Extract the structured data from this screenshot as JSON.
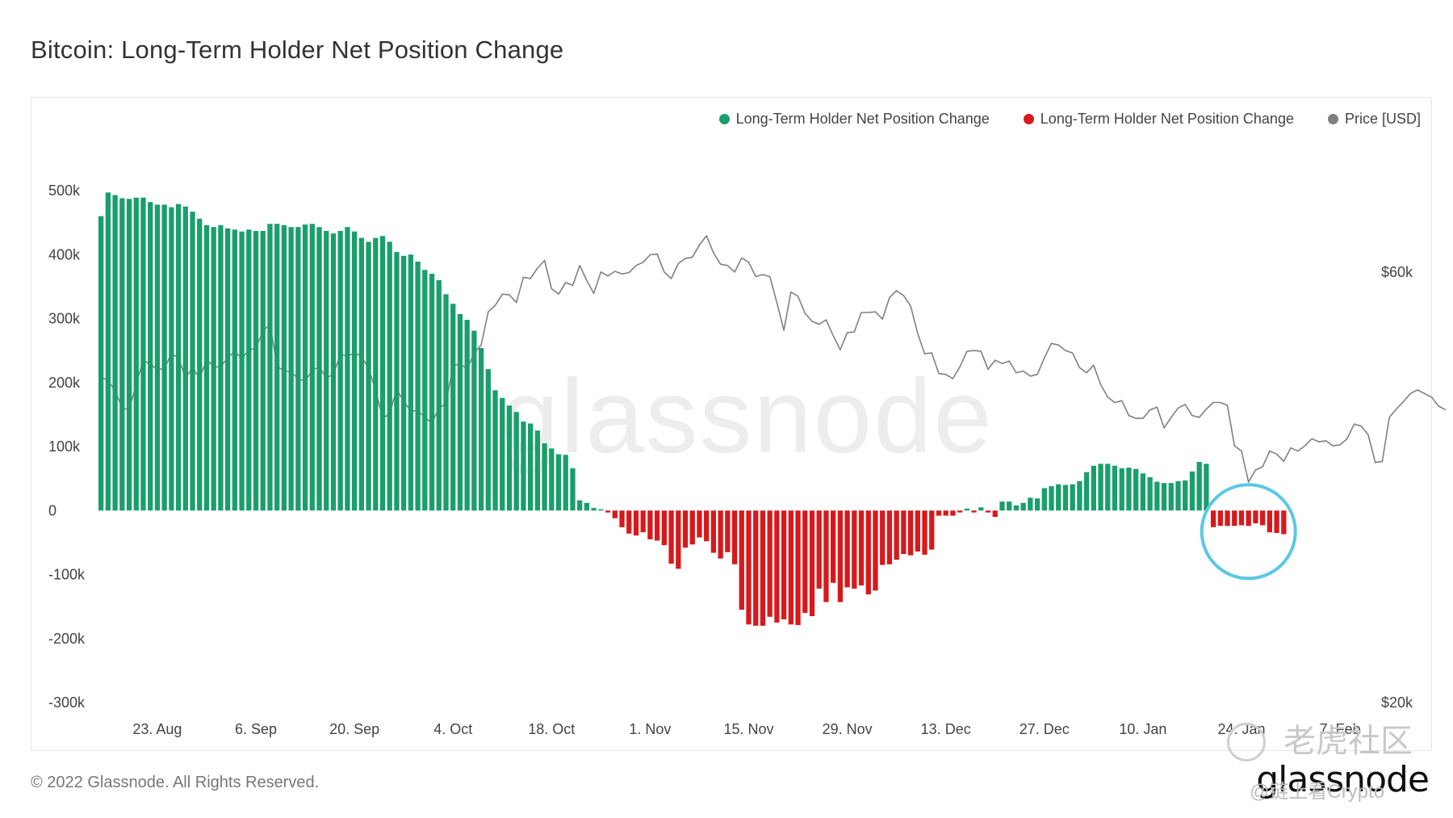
{
  "title": "Bitcoin: Long-Term Holder Net Position Change",
  "legend": {
    "items": [
      {
        "label": "Long-Term Holder Net Position Change",
        "color": "#1a9e6c"
      },
      {
        "label": "Long-Term Holder Net Position Change",
        "color": "#d7191c"
      },
      {
        "label": "Price [USD]",
        "color": "#808080"
      }
    ]
  },
  "watermark": "glassnode",
  "footer": "© 2022 Glassnode. All Rights Reserved.",
  "brand": "glassnode",
  "overlay": {
    "text_cn": "老虎社区",
    "handle": "@链上看Crypto"
  },
  "colors": {
    "positive": "#1a9e6c",
    "negative": "#d7191c",
    "price": "#808080",
    "highlight_circle": "#5bc8e3"
  },
  "chart_data": {
    "type": "bar",
    "y_left": {
      "ticks": [
        "500k",
        "400k",
        "300k",
        "200k",
        "100k",
        "0",
        "-100k",
        "-200k",
        "-300k"
      ],
      "range": [
        -300000,
        500000
      ]
    },
    "y_right": {
      "ticks": [
        "$60k",
        "$20k"
      ],
      "scale": "log",
      "range": [
        20000,
        70000
      ]
    },
    "x_ticks": [
      "23. Aug",
      "6. Sep",
      "20. Sep",
      "4. Oct",
      "18. Oct",
      "1. Nov",
      "15. Nov",
      "29. Nov",
      "13. Dec",
      "27. Dec",
      "10. Jan",
      "24. Jan",
      "7. Feb"
    ],
    "x_start_date": "2021-08-15",
    "series": [
      {
        "name": "Long-Term Holder Net Position Change",
        "type": "bar",
        "values": [
          460000,
          497000,
          493000,
          488000,
          487000,
          489000,
          489000,
          482000,
          478000,
          478000,
          474000,
          479000,
          475000,
          467000,
          456000,
          446000,
          443000,
          446000,
          441000,
          439000,
          436000,
          439000,
          437000,
          437000,
          448000,
          448000,
          446000,
          443000,
          443000,
          447000,
          448000,
          443000,
          437000,
          433000,
          437000,
          443000,
          436000,
          426000,
          420000,
          426000,
          429000,
          420000,
          404000,
          398000,
          400000,
          389000,
          376000,
          370000,
          360000,
          338000,
          323000,
          307000,
          298000,
          281000,
          254000,
          221000,
          188000,
          176000,
          164000,
          154000,
          139000,
          136000,
          125000,
          105000,
          97000,
          88000,
          87000,
          66000,
          16000,
          12000,
          4000,
          2000,
          -3000,
          -12000,
          -26000,
          -36000,
          -39000,
          -34000,
          -45000,
          -47000,
          -54000,
          -83000,
          -91000,
          -58000,
          -53000,
          -42000,
          -48000,
          -66000,
          -75000,
          -65000,
          -84000,
          -155000,
          -178000,
          -180000,
          -180000,
          -166000,
          -175000,
          -170000,
          -178000,
          -179000,
          -160000,
          -165000,
          -122000,
          -143000,
          -113000,
          -143000,
          -120000,
          -122000,
          -117000,
          -131000,
          -125000,
          -85000,
          -84000,
          -77000,
          -68000,
          -70000,
          -64000,
          -69000,
          -61000,
          -8000,
          -8000,
          -8000,
          -3000,
          3000,
          -3000,
          5000,
          -3000,
          -10000,
          14000,
          14000,
          8000,
          12000,
          20000,
          19000,
          35000,
          38000,
          41000,
          40000,
          41000,
          46000,
          60000,
          70000,
          73000,
          73000,
          70000,
          66000,
          67000,
          65000,
          58000,
          52000,
          45000,
          43000,
          43000,
          46000,
          47000,
          61000,
          76000,
          73000,
          -26000,
          -24000,
          -24000,
          -24000,
          -23000,
          -24000,
          -20000,
          -23000,
          -34000,
          -35000,
          -37000
        ]
      },
      {
        "name": "Price [USD]",
        "type": "line",
        "values": [
          45900,
          45500,
          44300,
          42400,
          42200,
          45100,
          47900,
          47400,
          46800,
          46900,
          48700,
          48200,
          45800,
          47000,
          45700,
          48000,
          47100,
          47100,
          48200,
          49000,
          48100,
          49200,
          49400,
          51600,
          52500,
          47200,
          46600,
          46500,
          45700,
          45400,
          46700,
          47100,
          45800,
          46200,
          48600,
          48400,
          48800,
          48400,
          46900,
          44400,
          41300,
          41800,
          44500,
          43100,
          42100,
          42100,
          41400,
          40800,
          42400,
          42900,
          47200,
          47500,
          46800,
          48800,
          49800,
          54200,
          55100,
          56700,
          56600,
          55500,
          59200,
          59000,
          60600,
          61800,
          57500,
          56700,
          58400,
          58000,
          61000,
          58700,
          56800,
          60000,
          59400,
          60100,
          59700,
          59900,
          61000,
          61500,
          62700,
          62800,
          60000,
          59000,
          61300,
          62100,
          62300,
          64300,
          65800,
          63000,
          61200,
          61000,
          60000,
          62200,
          61500,
          59300,
          59600,
          59300,
          55500,
          51700,
          57000,
          56400,
          54000,
          52900,
          52500,
          53100,
          51000,
          49200,
          51400,
          51500,
          54100,
          54100,
          54200,
          53200,
          56200,
          57200,
          56500,
          55000,
          51300,
          48700,
          48800,
          46300,
          46200,
          45700,
          47100,
          49000,
          49100,
          49000,
          46800,
          47900,
          47500,
          47800,
          46400,
          46600,
          46000,
          46200,
          48200,
          50000,
          49800,
          49100,
          48800,
          47000,
          46400,
          47300,
          45000,
          43600,
          43000,
          43200,
          41600,
          41300,
          41300,
          42200,
          42500,
          40300,
          41400,
          42400,
          42800,
          41600,
          41400,
          42300,
          43000,
          43000,
          42700,
          38500,
          38000,
          35100,
          36200,
          36500,
          38000,
          37700,
          37000,
          38300,
          38000,
          38500,
          39200,
          38900,
          39000,
          38500,
          38600,
          39200,
          40700,
          40500,
          39600,
          36900,
          37000,
          41400,
          42300,
          43100,
          44000,
          44400,
          44000,
          43600,
          42600,
          42200
        ]
      }
    ],
    "annotation": "highlight circle around the final negative bars (early Feb)"
  }
}
